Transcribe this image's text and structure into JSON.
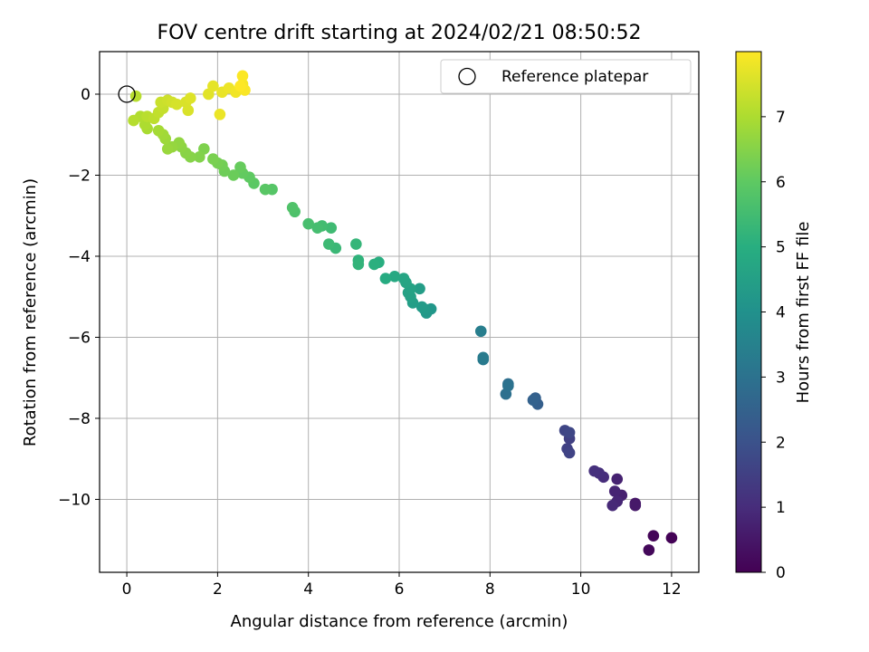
{
  "chart_data": {
    "type": "scatter",
    "title": "FOV centre drift starting at 2024/02/21 08:50:52",
    "xlabel": "Angular distance from reference (arcmin)",
    "ylabel": "Rotation from reference (arcmin)",
    "xlim": [
      -0.6,
      12.6
    ],
    "ylim": [
      -11.8,
      1.05
    ],
    "xticks": [
      0,
      2,
      4,
      6,
      8,
      10,
      12
    ],
    "yticks": [
      0,
      -2,
      -4,
      -6,
      -8,
      -10
    ],
    "grid": true,
    "legend": {
      "placement": "top-right",
      "entries": [
        "Reference platepar"
      ]
    },
    "reference_point": {
      "x": 0,
      "y": 0
    },
    "colorbar": {
      "label": "Hours from first FF file",
      "colormap": "viridis",
      "range": [
        0,
        8.0
      ],
      "ticks": [
        0,
        1,
        2,
        3,
        4,
        5,
        6,
        7
      ]
    },
    "points": [
      {
        "x": 12.0,
        "y": -10.95,
        "t": 0.05
      },
      {
        "x": 11.6,
        "y": -10.9,
        "t": 0.1
      },
      {
        "x": 11.5,
        "y": -11.25,
        "t": 0.15
      },
      {
        "x": 11.2,
        "y": -10.1,
        "t": 0.5
      },
      {
        "x": 11.2,
        "y": -10.15,
        "t": 0.55
      },
      {
        "x": 10.9,
        "y": -9.9,
        "t": 0.7
      },
      {
        "x": 10.8,
        "y": -9.5,
        "t": 0.75
      },
      {
        "x": 10.75,
        "y": -9.8,
        "t": 0.8
      },
      {
        "x": 10.8,
        "y": -10.05,
        "t": 0.85
      },
      {
        "x": 10.7,
        "y": -10.15,
        "t": 0.9
      },
      {
        "x": 10.5,
        "y": -9.45,
        "t": 1.0
      },
      {
        "x": 10.4,
        "y": -9.35,
        "t": 1.05
      },
      {
        "x": 10.3,
        "y": -9.3,
        "t": 1.1
      },
      {
        "x": 9.75,
        "y": -8.5,
        "t": 1.5
      },
      {
        "x": 9.7,
        "y": -8.75,
        "t": 1.55
      },
      {
        "x": 9.75,
        "y": -8.85,
        "t": 1.6
      },
      {
        "x": 9.65,
        "y": -8.3,
        "t": 1.65
      },
      {
        "x": 9.75,
        "y": -8.35,
        "t": 1.7
      },
      {
        "x": 9.05,
        "y": -7.65,
        "t": 2.4
      },
      {
        "x": 9.0,
        "y": -7.5,
        "t": 2.45
      },
      {
        "x": 8.95,
        "y": -7.55,
        "t": 2.5
      },
      {
        "x": 8.4,
        "y": -7.15,
        "t": 2.9
      },
      {
        "x": 8.35,
        "y": -7.4,
        "t": 2.95
      },
      {
        "x": 8.4,
        "y": -7.2,
        "t": 3.0
      },
      {
        "x": 7.85,
        "y": -6.55,
        "t": 3.25
      },
      {
        "x": 7.85,
        "y": -6.5,
        "t": 3.3
      },
      {
        "x": 7.8,
        "y": -5.85,
        "t": 3.4
      },
      {
        "x": 6.7,
        "y": -5.3,
        "t": 4.2
      },
      {
        "x": 6.6,
        "y": -5.4,
        "t": 4.25
      },
      {
        "x": 6.55,
        "y": -5.3,
        "t": 4.3
      },
      {
        "x": 6.5,
        "y": -5.25,
        "t": 4.35
      },
      {
        "x": 6.45,
        "y": -4.8,
        "t": 4.4
      },
      {
        "x": 6.3,
        "y": -5.15,
        "t": 4.45
      },
      {
        "x": 6.25,
        "y": -5.0,
        "t": 4.5
      },
      {
        "x": 6.2,
        "y": -4.9,
        "t": 4.55
      },
      {
        "x": 6.25,
        "y": -4.8,
        "t": 4.6
      },
      {
        "x": 6.15,
        "y": -4.65,
        "t": 4.65
      },
      {
        "x": 6.1,
        "y": -4.55,
        "t": 4.7
      },
      {
        "x": 5.9,
        "y": -4.5,
        "t": 4.8
      },
      {
        "x": 5.7,
        "y": -4.55,
        "t": 4.9
      },
      {
        "x": 5.55,
        "y": -4.15,
        "t": 5.0
      },
      {
        "x": 5.45,
        "y": -4.2,
        "t": 5.05
      },
      {
        "x": 5.1,
        "y": -4.1,
        "t": 5.15
      },
      {
        "x": 5.1,
        "y": -4.2,
        "t": 5.2
      },
      {
        "x": 5.05,
        "y": -3.7,
        "t": 5.25
      },
      {
        "x": 4.6,
        "y": -3.8,
        "t": 5.35
      },
      {
        "x": 4.45,
        "y": -3.7,
        "t": 5.4
      },
      {
        "x": 4.5,
        "y": -3.3,
        "t": 5.45
      },
      {
        "x": 4.3,
        "y": -3.25,
        "t": 5.5
      },
      {
        "x": 4.2,
        "y": -3.3,
        "t": 5.55
      },
      {
        "x": 4.0,
        "y": -3.2,
        "t": 5.6
      },
      {
        "x": 3.7,
        "y": -2.9,
        "t": 5.7
      },
      {
        "x": 3.65,
        "y": -2.8,
        "t": 5.75
      },
      {
        "x": 3.2,
        "y": -2.35,
        "t": 5.85
      },
      {
        "x": 3.05,
        "y": -2.35,
        "t": 5.9
      },
      {
        "x": 2.8,
        "y": -2.2,
        "t": 5.95
      },
      {
        "x": 2.7,
        "y": -2.05,
        "t": 6.0
      },
      {
        "x": 2.55,
        "y": -1.95,
        "t": 6.05
      },
      {
        "x": 2.5,
        "y": -1.8,
        "t": 6.1
      },
      {
        "x": 2.35,
        "y": -2.0,
        "t": 6.15
      },
      {
        "x": 2.15,
        "y": -1.9,
        "t": 6.2
      },
      {
        "x": 2.1,
        "y": -1.75,
        "t": 6.25
      },
      {
        "x": 2.0,
        "y": -1.7,
        "t": 6.3
      },
      {
        "x": 1.9,
        "y": -1.6,
        "t": 6.35
      },
      {
        "x": 1.7,
        "y": -1.35,
        "t": 6.4
      },
      {
        "x": 1.6,
        "y": -1.55,
        "t": 6.45
      },
      {
        "x": 1.4,
        "y": -1.55,
        "t": 6.5
      },
      {
        "x": 1.3,
        "y": -1.45,
        "t": 6.55
      },
      {
        "x": 1.2,
        "y": -1.3,
        "t": 6.6
      },
      {
        "x": 1.15,
        "y": -1.2,
        "t": 6.65
      },
      {
        "x": 1.0,
        "y": -1.3,
        "t": 6.7
      },
      {
        "x": 0.9,
        "y": -1.35,
        "t": 6.75
      },
      {
        "x": 0.85,
        "y": -1.1,
        "t": 6.8
      },
      {
        "x": 0.8,
        "y": -1.0,
        "t": 6.85
      },
      {
        "x": 0.7,
        "y": -0.9,
        "t": 6.9
      },
      {
        "x": 0.45,
        "y": -0.85,
        "t": 6.95
      },
      {
        "x": 0.4,
        "y": -0.75,
        "t": 7.0
      },
      {
        "x": 0.3,
        "y": -0.55,
        "t": 7.05
      },
      {
        "x": 0.15,
        "y": -0.65,
        "t": 7.1
      },
      {
        "x": 0.2,
        "y": -0.05,
        "t": 7.12
      },
      {
        "x": 0.45,
        "y": -0.55,
        "t": 7.15
      },
      {
        "x": 0.6,
        "y": -0.6,
        "t": 7.2
      },
      {
        "x": 0.7,
        "y": -0.45,
        "t": 7.25
      },
      {
        "x": 0.8,
        "y": -0.35,
        "t": 7.3
      },
      {
        "x": 0.75,
        "y": -0.2,
        "t": 7.35
      },
      {
        "x": 0.9,
        "y": -0.15,
        "t": 7.4
      },
      {
        "x": 1.0,
        "y": -0.2,
        "t": 7.45
      },
      {
        "x": 1.1,
        "y": -0.25,
        "t": 7.5
      },
      {
        "x": 1.3,
        "y": -0.2,
        "t": 7.55
      },
      {
        "x": 1.35,
        "y": -0.4,
        "t": 7.55
      },
      {
        "x": 1.4,
        "y": -0.1,
        "t": 7.6
      },
      {
        "x": 1.8,
        "y": 0.0,
        "t": 7.65
      },
      {
        "x": 1.9,
        "y": 0.2,
        "t": 7.7
      },
      {
        "x": 2.1,
        "y": 0.05,
        "t": 7.75
      },
      {
        "x": 2.05,
        "y": -0.5,
        "t": 7.78
      },
      {
        "x": 2.25,
        "y": 0.15,
        "t": 7.8
      },
      {
        "x": 2.4,
        "y": 0.05,
        "t": 7.85
      },
      {
        "x": 2.55,
        "y": 0.25,
        "t": 7.9
      },
      {
        "x": 2.6,
        "y": 0.1,
        "t": 7.95
      },
      {
        "x": 2.55,
        "y": 0.45,
        "t": 7.98
      },
      {
        "x": 2.5,
        "y": 0.2,
        "t": 8.0
      }
    ]
  }
}
